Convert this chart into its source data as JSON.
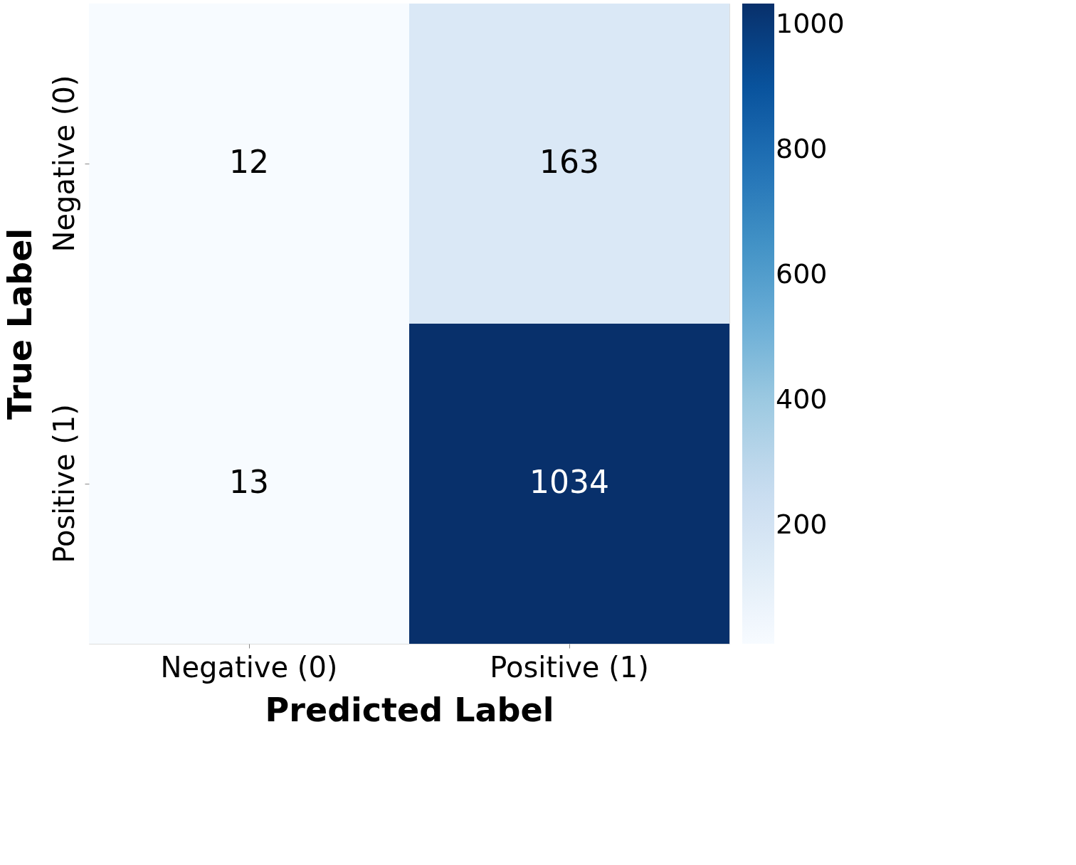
{
  "chart_data": {
    "type": "heatmap",
    "xlabel": "Predicted Label",
    "ylabel": "True Label",
    "categories": [
      "Negative (0)",
      "Positive (1)"
    ],
    "y_categories": [
      "Negative (0)",
      "Positive (1)"
    ],
    "cells": [
      [
        12,
        163
      ],
      [
        13,
        1034
      ]
    ],
    "clim": [
      12,
      1034
    ],
    "cticks": [
      200,
      400,
      600,
      800,
      1000
    ],
    "data_labels": true
  }
}
